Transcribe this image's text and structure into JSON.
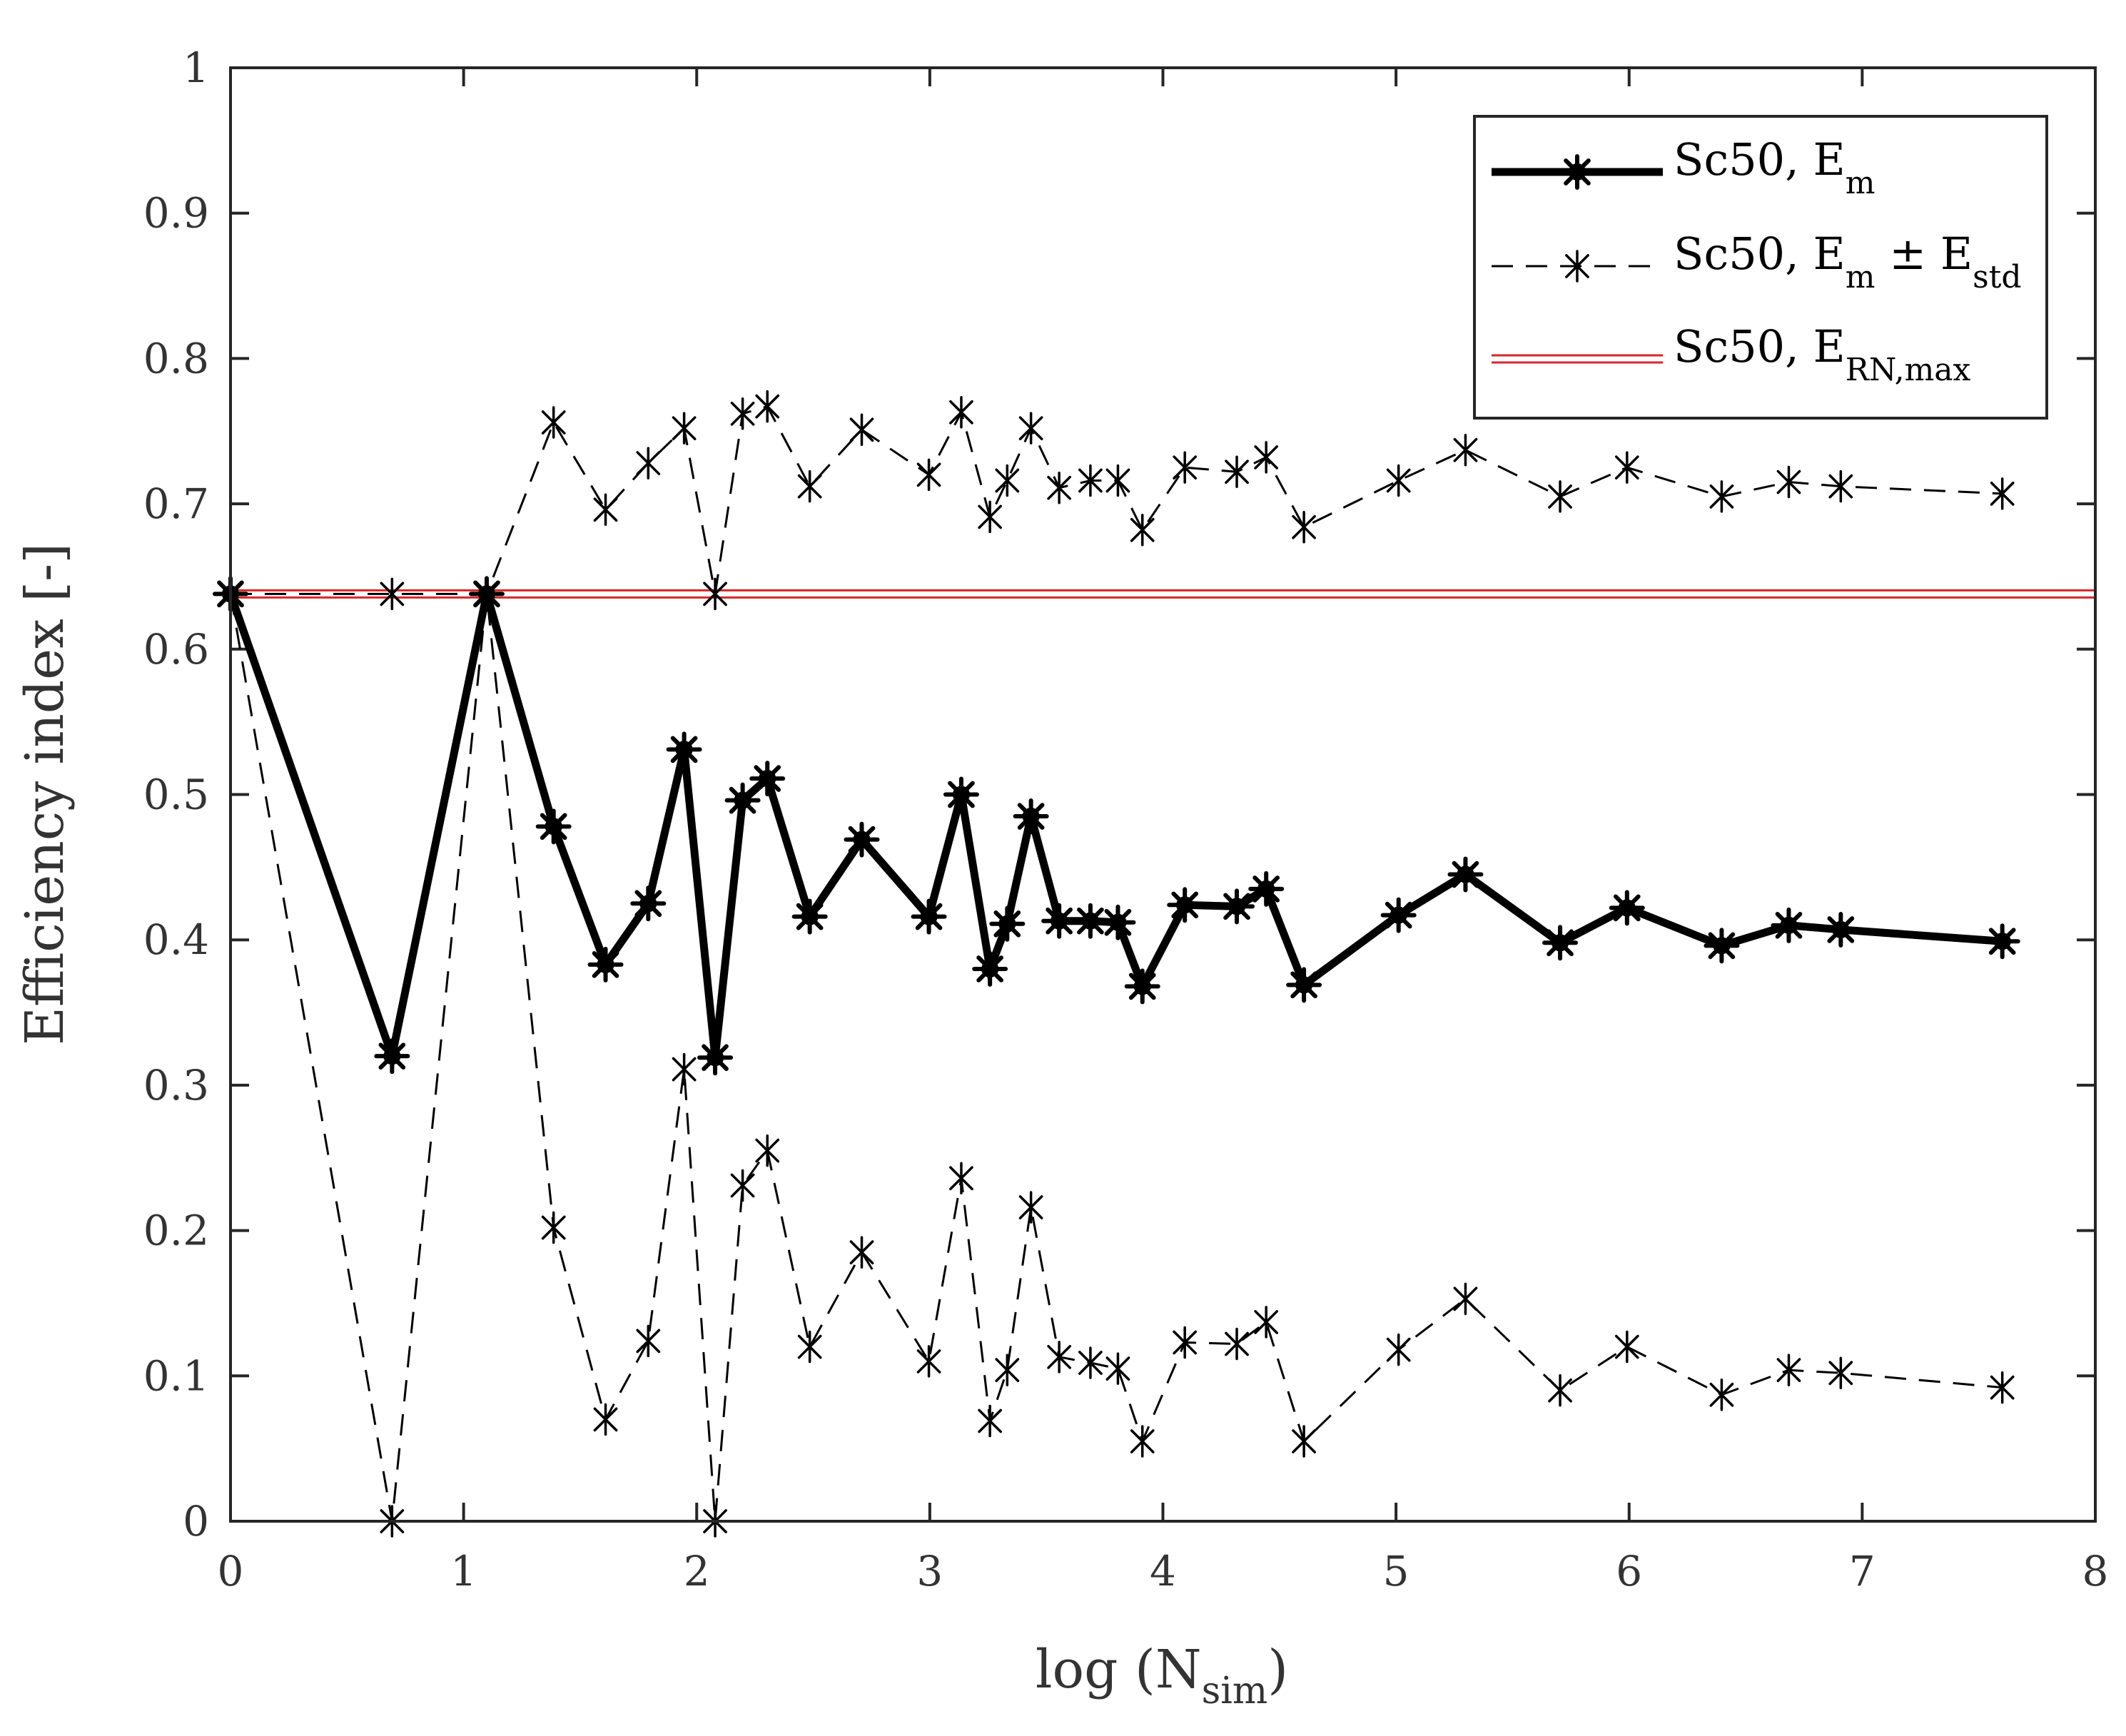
{
  "chart_data": {
    "type": "line",
    "title": "",
    "xlabel": {
      "base": "log (N",
      "subscript": "sim",
      "suffix": ")"
    },
    "ylabel": "Efficiency index [-]",
    "xlim": [
      0,
      8
    ],
    "ylim": [
      0,
      1
    ],
    "x_ticks": [
      "0",
      "1",
      "2",
      "3",
      "4",
      "5",
      "6",
      "7",
      "8"
    ],
    "y_ticks": [
      "0",
      "0.1",
      "0.2",
      "0.3",
      "0.4",
      "0.5",
      "0.6",
      "0.7",
      "0.8",
      "0.9",
      "1"
    ],
    "grid": false,
    "legend_position": "top-right",
    "x": [
      0,
      0.693,
      1.099,
      1.386,
      1.609,
      1.792,
      1.946,
      2.079,
      2.197,
      2.303,
      2.485,
      2.708,
      2.996,
      3.135,
      3.258,
      3.332,
      3.434,
      3.555,
      3.689,
      3.807,
      3.912,
      4.094,
      4.317,
      4.443,
      4.605,
      5.011,
      5.298,
      5.704,
      5.991,
      6.397,
      6.685,
      6.908,
      7.601
    ],
    "series": [
      {
        "name": "Sc50, E_m",
        "legend_label": {
          "base": "Sc50, E",
          "subscript": "m",
          "suffix": ""
        },
        "style": "solid-thick",
        "marker": "star-bold",
        "values": [
          0.638,
          0.32,
          0.638,
          0.478,
          0.383,
          0.425,
          0.531,
          0.319,
          0.496,
          0.511,
          0.416,
          0.469,
          0.416,
          0.5,
          0.38,
          0.411,
          0.485,
          0.413,
          0.413,
          0.412,
          0.368,
          0.424,
          0.423,
          0.435,
          0.369,
          0.417,
          0.445,
          0.398,
          0.422,
          0.396,
          0.41,
          0.407,
          0.399
        ]
      },
      {
        "name": "Sc50, E_m + E_std",
        "legend_label": {
          "base": "Sc50, E",
          "subscript": "m",
          "mid": " ± E",
          "subscript2": "std"
        },
        "style": "dashed",
        "marker": "star",
        "values": [
          0.638,
          0.638,
          0.638,
          0.756,
          0.696,
          0.728,
          0.752,
          0.638,
          0.762,
          0.767,
          0.712,
          0.751,
          0.72,
          0.763,
          0.691,
          0.716,
          0.752,
          0.711,
          0.716,
          0.716,
          0.682,
          0.725,
          0.722,
          0.732,
          0.684,
          0.716,
          0.737,
          0.705,
          0.725,
          0.705,
          0.715,
          0.712,
          0.707
        ]
      },
      {
        "name": "Sc50, E_m - E_std",
        "legend_label": null,
        "style": "dashed",
        "marker": "star",
        "values": [
          0.638,
          0.0,
          0.638,
          0.202,
          0.07,
          0.124,
          0.311,
          0.0,
          0.231,
          0.255,
          0.12,
          0.185,
          0.11,
          0.236,
          0.069,
          0.104,
          0.216,
          0.113,
          0.109,
          0.105,
          0.055,
          0.123,
          0.122,
          0.137,
          0.055,
          0.118,
          0.153,
          0.09,
          0.12,
          0.087,
          0.104,
          0.102,
          0.092
        ]
      },
      {
        "name": "Sc50, E_RN,max",
        "legend_label": {
          "base": "Sc50, E",
          "subscript": "RN,max",
          "suffix": ""
        },
        "style": "double-red",
        "color": "#d62728",
        "value": 0.638
      }
    ]
  }
}
